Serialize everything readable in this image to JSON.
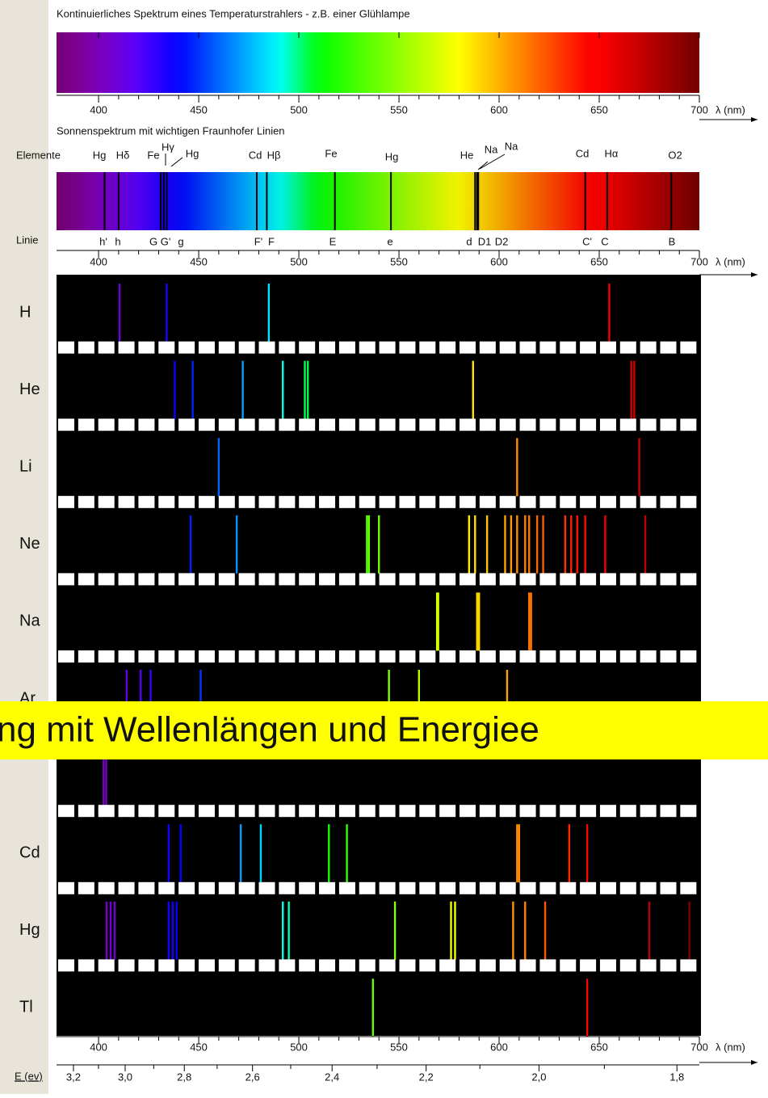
{
  "axis": {
    "xlim": [
      379,
      700
    ],
    "ticks": [
      400,
      450,
      500,
      550,
      600,
      650,
      700
    ],
    "label": "λ (nm)"
  },
  "continuous": {
    "title": "Kontinuierliches Spektrum eines Temperaturstrahlers - z.B. einer Glühlampe"
  },
  "solar": {
    "title": "Sonnenspektrum mit wichtigen Fraunhofer Linien",
    "elements_label": "Elemente",
    "lines_label": "Linie",
    "elements": [
      "Hg",
      "Hδ",
      "Fe",
      "Hγ",
      "Hg",
      "Cd",
      "Hβ",
      "Fe",
      "Hg",
      "He",
      "Na",
      "Na",
      "Cd",
      "Hα",
      "O2"
    ],
    "lines": [
      {
        "label": "h'",
        "wavelength": 403
      },
      {
        "label": "h",
        "wavelength": 410
      },
      {
        "label": "G",
        "wavelength": 431
      },
      {
        "label": "G'",
        "wavelength": 432.5
      },
      {
        "label": "g",
        "wavelength": 434
      },
      {
        "label": "F'",
        "wavelength": 479
      },
      {
        "label": "F",
        "wavelength": 484
      },
      {
        "label": "E",
        "wavelength": 518
      },
      {
        "label": "e",
        "wavelength": 546
      },
      {
        "label": "d",
        "wavelength": 588
      },
      {
        "label": "D1",
        "wavelength": 589
      },
      {
        "label": "D2",
        "wavelength": 589.6
      },
      {
        "label": "C'",
        "wavelength": 643
      },
      {
        "label": "C",
        "wavelength": 654
      },
      {
        "label": "B",
        "wavelength": 686
      }
    ]
  },
  "spectra": [
    {
      "element": "H",
      "lines": [
        410.5,
        434,
        485,
        655
      ]
    },
    {
      "element": "He",
      "lines": [
        438,
        447,
        472,
        492,
        503,
        504.5,
        587,
        666,
        667.5
      ]
    },
    {
      "element": "Li",
      "lines": [
        460,
        609,
        670
      ]
    },
    {
      "element": "Ne",
      "lines": [
        446,
        469,
        534,
        535,
        540,
        585,
        588,
        594,
        603,
        606,
        609,
        613,
        615,
        619,
        622,
        633,
        636,
        639,
        643,
        653,
        673
      ]
    },
    {
      "element": "Na",
      "lines": [
        569,
        569.6,
        589,
        590,
        615,
        616
      ]
    },
    {
      "element": "Ar",
      "lines": [
        414,
        421,
        426,
        451,
        545,
        560,
        604
      ]
    },
    {
      "element": null,
      "lines": [
        402.5,
        403.8
      ]
    },
    {
      "element": "Cd",
      "lines": [
        435,
        441,
        471,
        481,
        515,
        524,
        609,
        610,
        635,
        644
      ]
    },
    {
      "element": "Hg",
      "lines": [
        404,
        406,
        408,
        435,
        437,
        439,
        492,
        495,
        548,
        576,
        578,
        607,
        613,
        623,
        675,
        695
      ]
    },
    {
      "element": "Tl",
      "lines": [
        537,
        644
      ]
    }
  ],
  "energy": {
    "label": "E (ev)",
    "ticks": [
      {
        "value": 3.2,
        "label": "3,2"
      },
      {
        "value": 3.0,
        "label": "3,0"
      },
      {
        "value": 2.8,
        "label": "2,8"
      },
      {
        "value": 2.6,
        "label": "2,6"
      },
      {
        "value": 2.4,
        "label": "2,4"
      },
      {
        "value": 2.2,
        "label": "2,2"
      },
      {
        "value": 2.0,
        "label": "2,0"
      },
      {
        "value": 1.8,
        "label": "1,8"
      }
    ]
  },
  "banner": "ng mit Wellenlängen und Energiee"
}
